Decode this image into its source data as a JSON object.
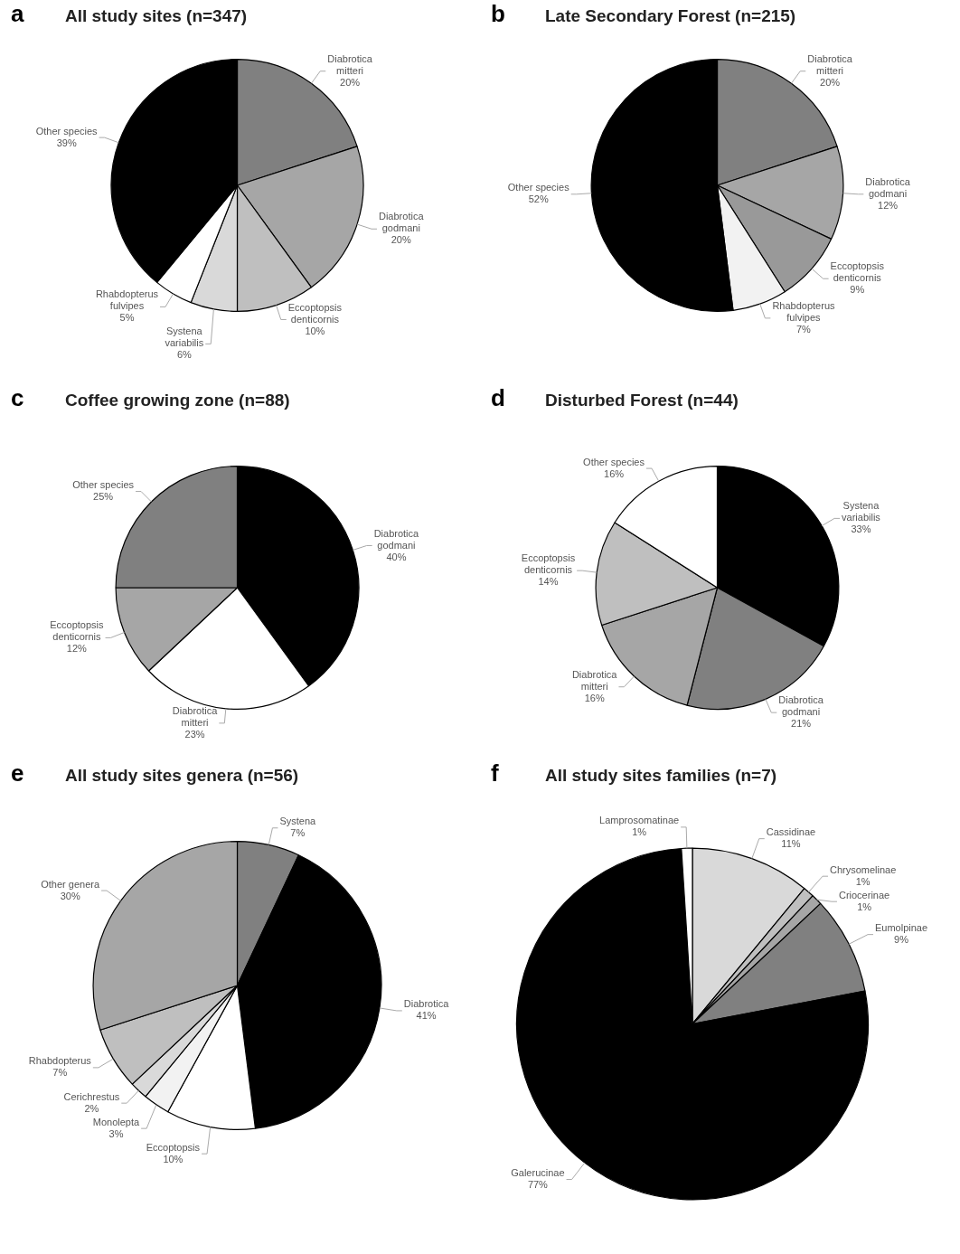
{
  "chart_data": [
    {
      "type": "pie",
      "title": "All study sites (n=347)",
      "annotations": [
        "a"
      ],
      "categories": [
        "Diabrotica mitteri",
        "Diabrotica godmani",
        "Eccoptopsis denticornis",
        "Systena variabilis",
        "Rhabdopterus fulvipes",
        "Other species"
      ],
      "values": [
        20,
        20,
        10,
        6,
        5,
        39
      ],
      "value_labels": [
        "20%",
        "20%",
        "10%",
        "6%",
        "5%",
        "39%"
      ],
      "colors": [
        "#808080",
        "#a6a6a6",
        "#bfbfbf",
        "#d9d9d9",
        "#ffffff",
        "#000000"
      ]
    },
    {
      "type": "pie",
      "title": "Late Secondary Forest (n=215)",
      "annotations": [
        "b"
      ],
      "categories": [
        "Diabrotica mitteri",
        "Diabrotica godmani",
        "Eccoptopsis denticornis",
        "Rhabdopterus fulvipes",
        "Other species"
      ],
      "values": [
        20,
        12,
        9,
        7,
        52
      ],
      "value_labels": [
        "20%",
        "12%",
        "9%",
        "7%",
        "52%"
      ],
      "colors": [
        "#808080",
        "#a6a6a6",
        "#999999",
        "#f2f2f2",
        "#000000"
      ]
    },
    {
      "type": "pie",
      "title": "Coffee growing zone (n=88)",
      "annotations": [
        "c"
      ],
      "categories": [
        "Diabrotica godmani",
        "Diabrotica mitteri",
        "Eccoptopsis denticornis",
        "Other species"
      ],
      "values": [
        40,
        23,
        12,
        25
      ],
      "value_labels": [
        "40%",
        "23%",
        "12%",
        "25%"
      ],
      "colors": [
        "#000000",
        "#ffffff",
        "#a6a6a6",
        "#808080"
      ]
    },
    {
      "type": "pie",
      "title": "Disturbed Forest (n=44)",
      "annotations": [
        "d"
      ],
      "categories": [
        "Systena variabilis",
        "Diabrotica godmani",
        "Diabrotica mitteri",
        "Eccoptopsis denticornis",
        "Other species"
      ],
      "values": [
        33,
        21,
        16,
        14,
        16
      ],
      "value_labels": [
        "33%",
        "21%",
        "16%",
        "14%",
        "16%"
      ],
      "colors": [
        "#000000",
        "#808080",
        "#a6a6a6",
        "#bfbfbf",
        "#ffffff"
      ]
    },
    {
      "type": "pie",
      "title": "All study sites genera (n=56)",
      "annotations": [
        "e"
      ],
      "categories": [
        "Systena",
        "Diabrotica",
        "Eccoptopsis",
        "Monolepta",
        "Cerichrestus",
        "Rhabdopterus",
        "Other genera"
      ],
      "values": [
        7,
        41,
        10,
        3,
        2,
        7,
        30
      ],
      "value_labels": [
        "7%",
        "41%",
        "10%",
        "3%",
        "2%",
        "7%",
        "30%"
      ],
      "colors": [
        "#808080",
        "#000000",
        "#ffffff",
        "#f2f2f2",
        "#d9d9d9",
        "#bfbfbf",
        "#a6a6a6"
      ]
    },
    {
      "type": "pie",
      "title": "All study sites families (n=7)",
      "annotations": [
        "f"
      ],
      "categories": [
        "Cassidinae",
        "Chrysomelinae",
        "Criocerinae",
        "Eumolpinae",
        "Galerucinae",
        "Lamprosomatinae"
      ],
      "values": [
        11,
        1,
        1,
        9,
        77,
        1
      ],
      "value_labels": [
        "11%",
        "1%",
        "1%",
        "9%",
        "77%",
        "1%"
      ],
      "colors": [
        "#d9d9d9",
        "#bfbfbf",
        "#a6a6a6",
        "#808080",
        "#000000",
        "#ffffff"
      ]
    }
  ]
}
